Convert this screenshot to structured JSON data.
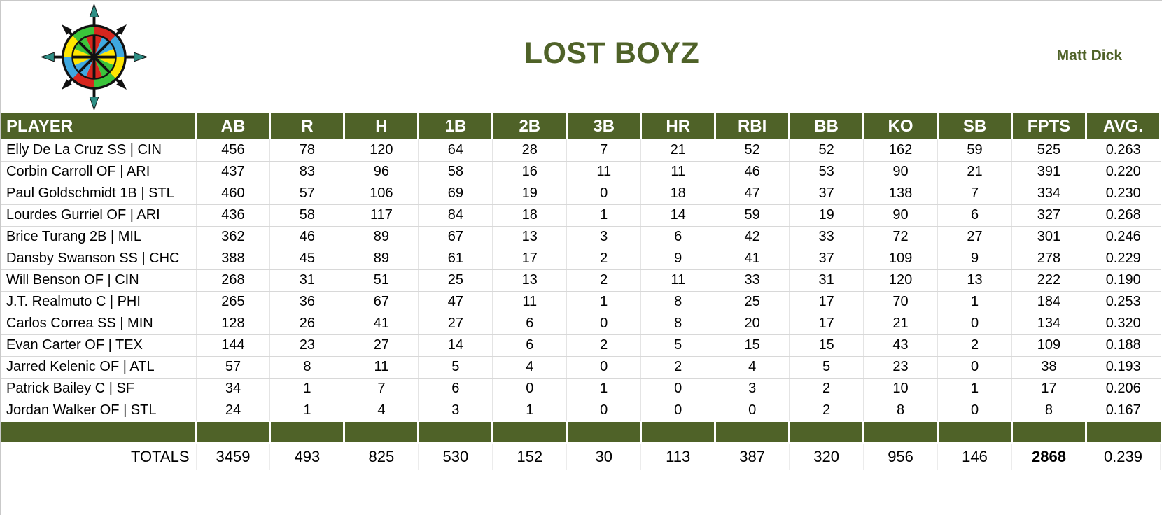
{
  "header": {
    "title": "LOST BOYZ",
    "owner": "Matt Dick",
    "logo": "compass-rose"
  },
  "colors": {
    "accent": "#4F6228",
    "header_text": "#FFFFFF",
    "body_text": "#000000",
    "grid_line": "#D8D8D8",
    "logo_red": "#D7261E",
    "logo_green": "#3BC43B",
    "logo_blue": "#3FA8E0",
    "logo_yellow": "#FFE600",
    "logo_teal": "#2E8F86",
    "logo_black": "#111111"
  },
  "table": {
    "columns": [
      "PLAYER",
      "AB",
      "R",
      "H",
      "1B",
      "2B",
      "3B",
      "HR",
      "RBI",
      "BB",
      "KO",
      "SB",
      "FPTS",
      "AVG."
    ],
    "players": [
      {
        "name": "Elly De La Cruz SS | CIN",
        "stats": [
          "456",
          "78",
          "120",
          "64",
          "28",
          "7",
          "21",
          "52",
          "52",
          "162",
          "59",
          "525",
          "0.263"
        ]
      },
      {
        "name": "Corbin Carroll OF | ARI",
        "stats": [
          "437",
          "83",
          "96",
          "58",
          "16",
          "11",
          "11",
          "46",
          "53",
          "90",
          "21",
          "391",
          "0.220"
        ]
      },
      {
        "name": "Paul Goldschmidt 1B | STL",
        "stats": [
          "460",
          "57",
          "106",
          "69",
          "19",
          "0",
          "18",
          "47",
          "37",
          "138",
          "7",
          "334",
          "0.230"
        ]
      },
      {
        "name": "Lourdes Gurriel OF | ARI",
        "stats": [
          "436",
          "58",
          "117",
          "84",
          "18",
          "1",
          "14",
          "59",
          "19",
          "90",
          "6",
          "327",
          "0.268"
        ]
      },
      {
        "name": "Brice Turang 2B | MIL",
        "stats": [
          "362",
          "46",
          "89",
          "67",
          "13",
          "3",
          "6",
          "42",
          "33",
          "72",
          "27",
          "301",
          "0.246"
        ]
      },
      {
        "name": "Dansby Swanson SS | CHC",
        "stats": [
          "388",
          "45",
          "89",
          "61",
          "17",
          "2",
          "9",
          "41",
          "37",
          "109",
          "9",
          "278",
          "0.229"
        ]
      },
      {
        "name": "Will Benson OF | CIN",
        "stats": [
          "268",
          "31",
          "51",
          "25",
          "13",
          "2",
          "11",
          "33",
          "31",
          "120",
          "13",
          "222",
          "0.190"
        ]
      },
      {
        "name": "J.T. Realmuto C | PHI",
        "stats": [
          "265",
          "36",
          "67",
          "47",
          "11",
          "1",
          "8",
          "25",
          "17",
          "70",
          "1",
          "184",
          "0.253"
        ]
      },
      {
        "name": "Carlos Correa SS | MIN",
        "stats": [
          "128",
          "26",
          "41",
          "27",
          "6",
          "0",
          "8",
          "20",
          "17",
          "21",
          "0",
          "134",
          "0.320"
        ]
      },
      {
        "name": "Evan Carter OF | TEX",
        "stats": [
          "144",
          "23",
          "27",
          "14",
          "6",
          "2",
          "5",
          "15",
          "15",
          "43",
          "2",
          "109",
          "0.188"
        ]
      },
      {
        "name": "Jarred Kelenic OF | ATL",
        "stats": [
          "57",
          "8",
          "11",
          "5",
          "4",
          "0",
          "2",
          "4",
          "5",
          "23",
          "0",
          "38",
          "0.193"
        ]
      },
      {
        "name": "Patrick Bailey C | SF",
        "stats": [
          "34",
          "1",
          "7",
          "6",
          "0",
          "1",
          "0",
          "3",
          "2",
          "10",
          "1",
          "17",
          "0.206"
        ]
      },
      {
        "name": "Jordan Walker OF | STL",
        "stats": [
          "24",
          "1",
          "4",
          "3",
          "1",
          "0",
          "0",
          "0",
          "2",
          "8",
          "0",
          "8",
          "0.167"
        ]
      }
    ],
    "totals": {
      "label": "TOTALS",
      "stats": [
        "3459",
        "493",
        "825",
        "530",
        "152",
        "30",
        "113",
        "387",
        "320",
        "956",
        "146",
        "2868",
        "0.239"
      ],
      "bold_stat_index": 11
    }
  }
}
